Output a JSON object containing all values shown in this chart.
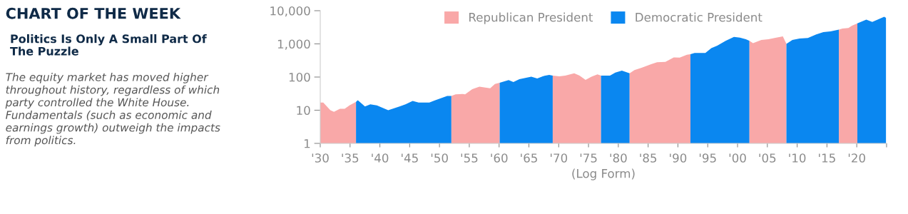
{
  "chart_data": {
    "type": "area",
    "title": "CHART OF THE WEEK",
    "subtitle": "Politics Is Only A Small Part Of\nThe Puzzle",
    "annotations": [
      "The equity market has moved higher\nthroughout history, regardless of which\nparty controlled the White House.\nFundamentals (such as economic and\nearnings growth) outweigh the impacts\nfrom politics."
    ],
    "xlabel": "(Log Form)",
    "log": "y",
    "legend": "top",
    "grid": false,
    "xlim": [
      1930,
      2025
    ],
    "ylim": [
      1,
      10000
    ],
    "xticks": [
      {
        "value": 1930,
        "label": "'30"
      },
      {
        "value": 1935,
        "label": "'35"
      },
      {
        "value": 1940,
        "label": "'40"
      },
      {
        "value": 1945,
        "label": "'45"
      },
      {
        "value": 1950,
        "label": "'50"
      },
      {
        "value": 1955,
        "label": "'55"
      },
      {
        "value": 1960,
        "label": "'60"
      },
      {
        "value": 1965,
        "label": "'65"
      },
      {
        "value": 1970,
        "label": "'70"
      },
      {
        "value": 1975,
        "label": "'75"
      },
      {
        "value": 1980,
        "label": "'80"
      },
      {
        "value": 1985,
        "label": "'85"
      },
      {
        "value": 1990,
        "label": "'90"
      },
      {
        "value": 1995,
        "label": "'95"
      },
      {
        "value": 2000,
        "label": "'00"
      },
      {
        "value": 2005,
        "label": "'05"
      },
      {
        "value": 2010,
        "label": "'10"
      },
      {
        "value": 2015,
        "label": "'15"
      },
      {
        "value": 2020,
        "label": "'20"
      },
      {
        "value": 2025,
        "label": null
      }
    ],
    "yticks": [
      1,
      10,
      100,
      {
        "value": 1000,
        "label": "1,000"
      },
      {
        "value": 10000,
        "label": "10,000"
      }
    ],
    "series": [
      {
        "name": "Republican President",
        "color": "#f9a8a8",
        "x": [
          1930,
          1930.5,
          1931.7,
          1932.3,
          1933.3,
          1934.1,
          1934.9,
          1936
        ],
        "values": [
          17,
          17,
          10,
          9,
          11,
          11,
          14,
          18
        ]
      },
      {
        "name": "Democratic President",
        "color": "#0a87f0",
        "x": [
          1936,
          1936.3,
          1937.5,
          1938.4,
          1939.5,
          1941.4,
          1943.3,
          1944.3,
          1945.5,
          1946.5,
          1948.3,
          1949.3,
          1951.3,
          1952
        ],
        "values": [
          18,
          20,
          13,
          15,
          14,
          10,
          13,
          15,
          19,
          17,
          17,
          20,
          27,
          27
        ]
      },
      {
        "color": "#f9a8a8",
        "x": [
          1952,
          1952.7,
          1953.9,
          1954.3,
          1955.5,
          1956.7,
          1957.7,
          1958.5,
          1959.3,
          1960.1
        ],
        "values": [
          27,
          30,
          31,
          30,
          43,
          51,
          48,
          46,
          62,
          67
        ]
      },
      {
        "color": "#0a87f0",
        "x": [
          1960.1,
          1961.6,
          1962.4,
          1963.4,
          1965.4,
          1966.4,
          1967.4,
          1968.4,
          1969
        ],
        "values": [
          67,
          81,
          71,
          86,
          103,
          91,
          107,
          116,
          110
        ]
      },
      {
        "color": "#f9a8a8",
        "x": [
          1969,
          1970.1,
          1971.1,
          1972.6,
          1973.5,
          1974.5,
          1975.5,
          1976.5,
          1977.1
        ],
        "values": [
          110,
          105,
          110,
          130,
          110,
          82,
          102,
          120,
          110
        ]
      },
      {
        "color": "#0a87f0",
        "x": [
          1977.1,
          1978.6,
          1979.5,
          1980.6,
          1981.9
        ],
        "values": [
          110,
          110,
          137,
          156,
          130
        ]
      },
      {
        "color": "#f9a8a8",
        "x": [
          1981.9,
          1982.7,
          1983.9,
          1985.5,
          1986.5,
          1987.9,
          1989.3,
          1990.3,
          1991.5,
          1992.1
        ],
        "values": [
          130,
          162,
          190,
          244,
          280,
          287,
          388,
          385,
          470,
          490
        ]
      },
      {
        "color": "#0a87f0",
        "x": [
          1992.1,
          1992.8,
          1994.6,
          1995.6,
          1996.6,
          1998,
          1999.4,
          2000.4,
          2001.4,
          2002
        ],
        "values": [
          490,
          530,
          535,
          740,
          885,
          1230,
          1620,
          1550,
          1380,
          1230
        ]
      },
      {
        "color": "#f9a8a8",
        "x": [
          2002,
          2002.6,
          2004,
          2005.2,
          2006.2,
          2007.6,
          2008.2
        ],
        "values": [
          1230,
          1050,
          1310,
          1380,
          1500,
          1690,
          1000
        ]
      },
      {
        "color": "#0a87f0",
        "x": [
          2008.2,
          2009.2,
          2010.4,
          2011.8,
          2013.2,
          2014.4,
          2015.6,
          2017
        ],
        "values": [
          1000,
          1310,
          1450,
          1500,
          1920,
          2250,
          2390,
          2680
        ]
      },
      {
        "color": "#f9a8a8",
        "x": [
          2017,
          2017.6,
          2018.6,
          2019.2,
          2020.1
        ],
        "values": [
          2680,
          2900,
          3000,
          3550,
          4150
        ]
      },
      {
        "color": "#0a87f0",
        "x": [
          2020.1,
          2021.6,
          2022.6,
          2024.6,
          2024.9
        ],
        "values": [
          4150,
          5400,
          4600,
          6600,
          6100
        ]
      }
    ]
  }
}
